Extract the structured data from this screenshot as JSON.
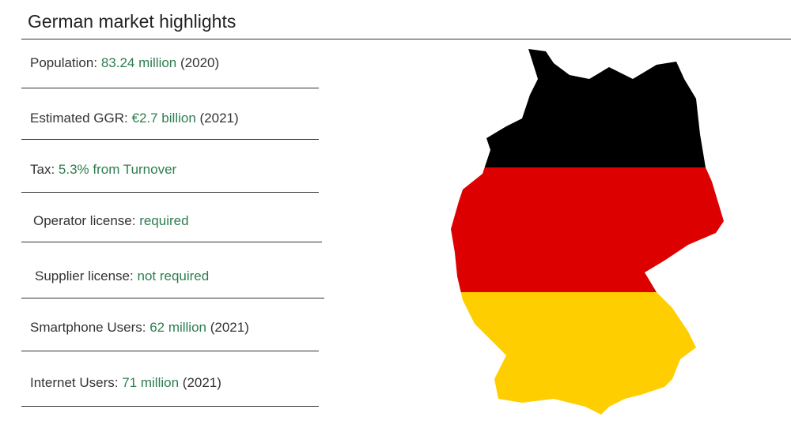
{
  "header": {
    "title": "German market highlights"
  },
  "items": [
    {
      "label": "Population:",
      "value": "83.24 million",
      "note": "(2020)"
    },
    {
      "label": "Estimated GGR:",
      "value": "€2.7 billion",
      "note": "(2021)"
    },
    {
      "label": "Tax:",
      "value": "5.3% from Turnover"
    },
    {
      "label": "Operator license:",
      "value": "required"
    },
    {
      "label": "Supplier license:",
      "value": "not required"
    },
    {
      "label": "Smartphone Users:",
      "value": "62 million",
      "note": "(2021)"
    },
    {
      "label": "Internet Users:",
      "value": "71 million",
      "note": "(2021)"
    }
  ]
}
